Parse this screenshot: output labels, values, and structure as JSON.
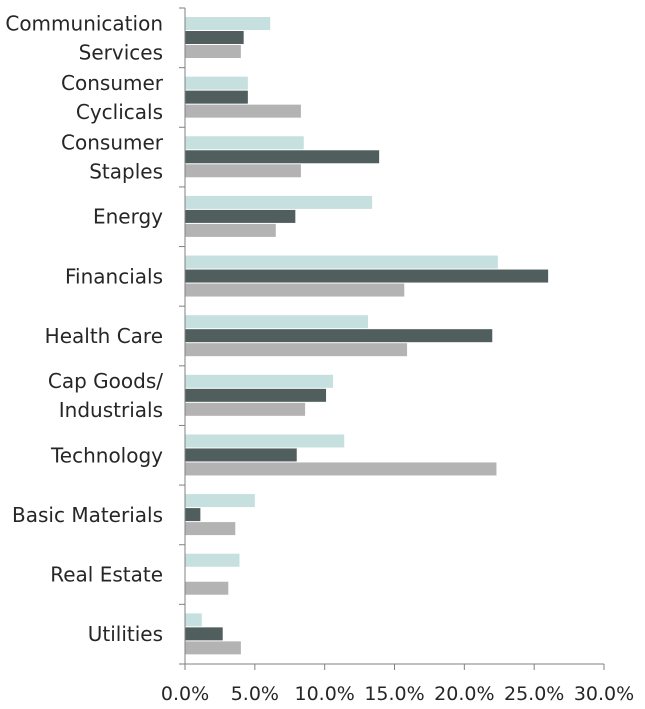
{
  "chart_data": {
    "type": "bar",
    "orientation": "horizontal",
    "title": "",
    "xlabel": "",
    "ylabel": "",
    "categories": [
      [
        "Communication",
        "Services"
      ],
      [
        "Consumer",
        "Cyclicals"
      ],
      [
        "Consumer",
        "Staples"
      ],
      [
        "Energy"
      ],
      [
        "Financials"
      ],
      [
        "Health Care"
      ],
      [
        "Cap Goods/",
        "Industrials"
      ],
      [
        "Technology"
      ],
      [
        "Basic Materials"
      ],
      [
        "Real Estate"
      ],
      [
        "Utilities"
      ]
    ],
    "series": [
      {
        "color": "#c5e0df",
        "values": [
          6.1,
          4.5,
          8.5,
          13.4,
          22.4,
          13.1,
          10.6,
          11.4,
          5.0,
          3.9,
          1.2
        ]
      },
      {
        "color": "#505e5e",
        "values": [
          4.2,
          4.5,
          13.9,
          7.9,
          26.0,
          22.0,
          10.1,
          8.0,
          1.1,
          0.0,
          2.7
        ]
      },
      {
        "color": "#b3b3b3",
        "values": [
          4.0,
          8.3,
          8.3,
          6.5,
          15.7,
          15.9,
          8.6,
          22.3,
          3.6,
          3.1,
          4.0
        ]
      }
    ],
    "xlim": [
      0,
      30
    ],
    "xticks": [
      0,
      5,
      10,
      15,
      20,
      25,
      30
    ],
    "xtick_labels": [
      "0.0%",
      "5.0%",
      "10.0%",
      "15.0%",
      "20.0%",
      "25.0%",
      "30.0%"
    ],
    "grid": false,
    "legend": "none"
  }
}
